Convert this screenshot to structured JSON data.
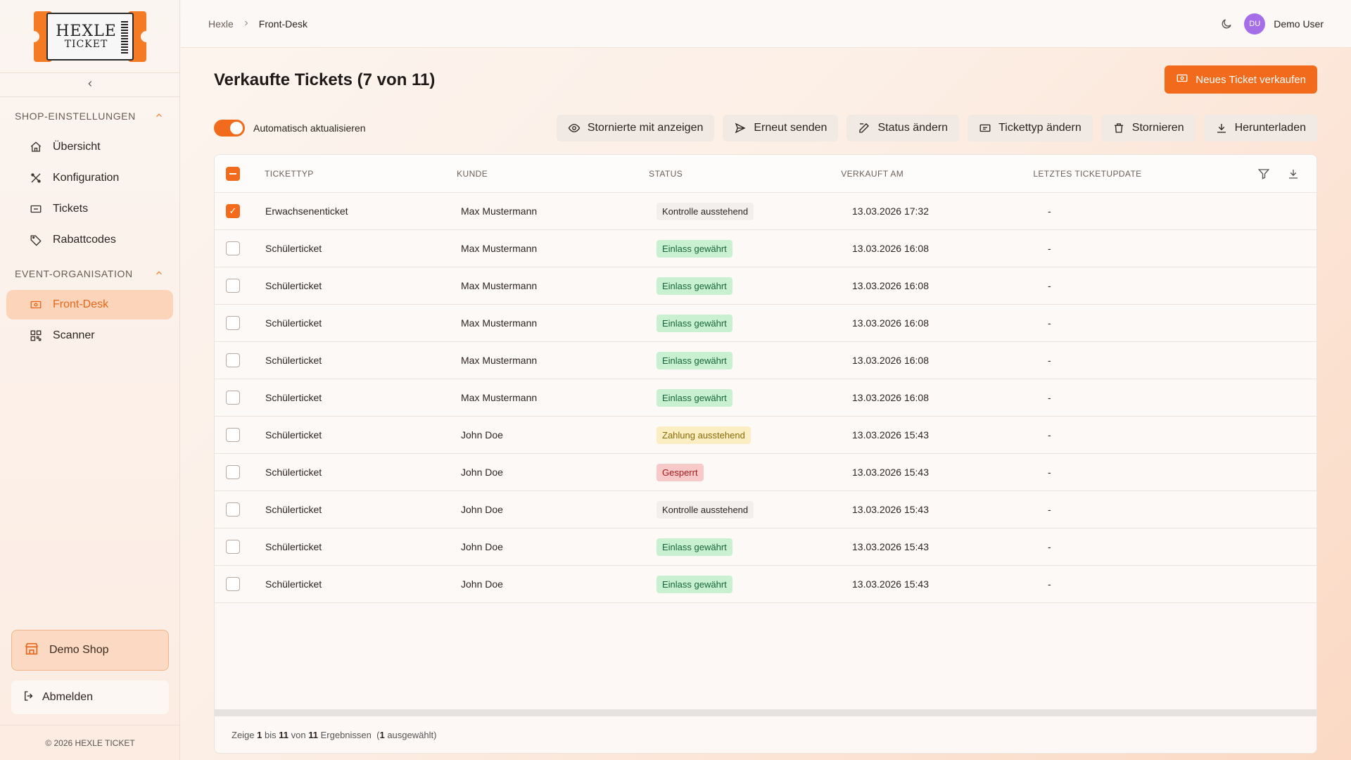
{
  "sidebar": {
    "logo": {
      "line1": "HEXLE",
      "line2": "TICKET"
    },
    "sections": [
      {
        "title": "SHOP-EINSTELLUNGEN",
        "items": [
          {
            "label": "Übersicht",
            "icon": "home-icon"
          },
          {
            "label": "Konfiguration",
            "icon": "tools-icon"
          },
          {
            "label": "Tickets",
            "icon": "ticket-icon"
          },
          {
            "label": "Rabattcodes",
            "icon": "tag-icon"
          }
        ]
      },
      {
        "title": "EVENT-ORGANISATION",
        "items": [
          {
            "label": "Front-Desk",
            "icon": "frontdesk-icon",
            "active": true
          },
          {
            "label": "Scanner",
            "icon": "qr-icon"
          }
        ]
      }
    ],
    "shop_label": "Demo Shop",
    "logout_label": "Abmelden",
    "copyright": "© 2026 HEXLE TICKET"
  },
  "topbar": {
    "breadcrumb": [
      "Hexle",
      "Front-Desk"
    ],
    "user_initials": "DU",
    "user_name": "Demo User"
  },
  "main": {
    "title": "Verkaufte Tickets (7 von 11)",
    "primary_button": "Neues Ticket verkaufen",
    "auto_refresh_label": "Automatisch aktualisieren",
    "auto_refresh_on": true,
    "actions": [
      "Stornierte mit anzeigen",
      "Erneut senden",
      "Status ändern",
      "Tickettyp ändern",
      "Stornieren",
      "Herunterladen"
    ]
  },
  "table": {
    "columns": [
      "TICKETTYP",
      "KUNDE",
      "STATUS",
      "VERKAUFT AM",
      "LETZTES TICKETUPDATE"
    ],
    "rows": [
      {
        "checked": true,
        "type": "Erwachsenenticket",
        "customer": "Max Mustermann",
        "status": "Kontrolle ausstehend",
        "status_kind": "gray",
        "sold": "13.03.2026 17:32",
        "update": "-"
      },
      {
        "checked": false,
        "type": "Schülerticket",
        "customer": "Max Mustermann",
        "status": "Einlass gewährt",
        "status_kind": "green",
        "sold": "13.03.2026 16:08",
        "update": "-"
      },
      {
        "checked": false,
        "type": "Schülerticket",
        "customer": "Max Mustermann",
        "status": "Einlass gewährt",
        "status_kind": "green",
        "sold": "13.03.2026 16:08",
        "update": "-"
      },
      {
        "checked": false,
        "type": "Schülerticket",
        "customer": "Max Mustermann",
        "status": "Einlass gewährt",
        "status_kind": "green",
        "sold": "13.03.2026 16:08",
        "update": "-"
      },
      {
        "checked": false,
        "type": "Schülerticket",
        "customer": "Max Mustermann",
        "status": "Einlass gewährt",
        "status_kind": "green",
        "sold": "13.03.2026 16:08",
        "update": "-"
      },
      {
        "checked": false,
        "type": "Schülerticket",
        "customer": "Max Mustermann",
        "status": "Einlass gewährt",
        "status_kind": "green",
        "sold": "13.03.2026 16:08",
        "update": "-"
      },
      {
        "checked": false,
        "type": "Schülerticket",
        "customer": "John Doe",
        "status": "Zahlung ausstehend",
        "status_kind": "yellow",
        "sold": "13.03.2026 15:43",
        "update": "-"
      },
      {
        "checked": false,
        "type": "Schülerticket",
        "customer": "John Doe",
        "status": "Gesperrt",
        "status_kind": "red",
        "sold": "13.03.2026 15:43",
        "update": "-"
      },
      {
        "checked": false,
        "type": "Schülerticket",
        "customer": "John Doe",
        "status": "Kontrolle ausstehend",
        "status_kind": "gray",
        "sold": "13.03.2026 15:43",
        "update": "-"
      },
      {
        "checked": false,
        "type": "Schülerticket",
        "customer": "John Doe",
        "status": "Einlass gewährt",
        "status_kind": "green",
        "sold": "13.03.2026 15:43",
        "update": "-"
      },
      {
        "checked": false,
        "type": "Schülerticket",
        "customer": "John Doe",
        "status": "Einlass gewährt",
        "status_kind": "green",
        "sold": "13.03.2026 15:43",
        "update": "-"
      }
    ],
    "footer": {
      "prefix": "Zeige",
      "from": "1",
      "mid1": "bis",
      "to": "11",
      "mid2": "von",
      "total": "11",
      "suffix": "Ergebnissen",
      "sel_open": "(",
      "selected": "1",
      "sel_close": "ausgewählt)"
    }
  },
  "colors": {
    "accent": "#f26a1b",
    "active_bg": "#fbd4b9"
  }
}
